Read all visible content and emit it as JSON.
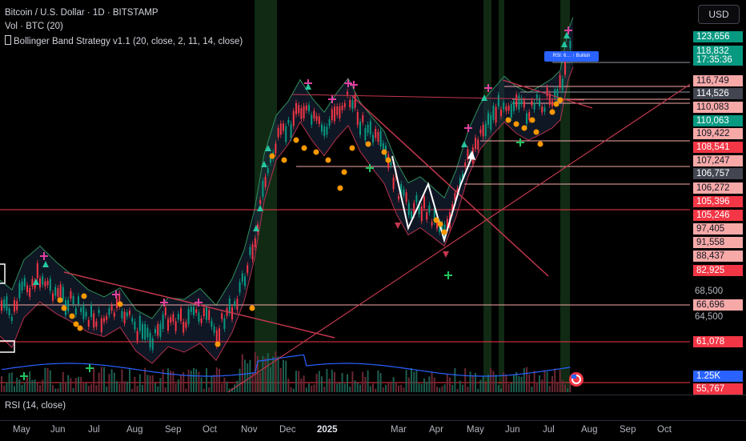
{
  "legend": {
    "symbol": "Bitcoin / U.S. Dollar · 1D · BITSTAMP",
    "volume": "Vol · BTC (20)",
    "strategy": "Bollinger Band Strategy v1.1 (20, close, 2, 11, 14, close)"
  },
  "currency_button": "USD",
  "badge_text": "RSI: 6… ↑ Bullish",
  "price_labels": [
    {
      "text": "123,656",
      "bg": "#089981",
      "fg": "#ffffff"
    },
    {
      "text": "118,832",
      "bg": "#089981",
      "fg": "#ffffff"
    },
    {
      "text": "17:35:36",
      "bg": "#089981",
      "fg": "#ffffff"
    },
    {
      "text": "116,749",
      "bg": "#f7a9a8",
      "fg": "#131722"
    },
    {
      "text": "114,526",
      "bg": "#434651",
      "fg": "#ffffff"
    },
    {
      "text": "110,083",
      "bg": "#f7a9a8",
      "fg": "#131722"
    },
    {
      "text": "110,063",
      "bg": "#089981",
      "fg": "#ffffff"
    },
    {
      "text": "109,422",
      "bg": "#f7a9a8",
      "fg": "#131722"
    },
    {
      "text": "108,541",
      "bg": "#f23645",
      "fg": "#ffffff"
    },
    {
      "text": "107,247",
      "bg": "#f7a9a8",
      "fg": "#131722"
    },
    {
      "text": "106,757",
      "bg": "#434651",
      "fg": "#ffffff"
    },
    {
      "text": "106,272",
      "bg": "#f7a9a8",
      "fg": "#131722"
    },
    {
      "text": "105,396",
      "bg": "#f23645",
      "fg": "#ffffff"
    },
    {
      "text": "105,246",
      "bg": "#f23645",
      "fg": "#ffffff"
    },
    {
      "text": "97,405",
      "bg": "#f7a9a8",
      "fg": "#131722"
    },
    {
      "text": "91,558",
      "bg": "#f7a9a8",
      "fg": "#131722"
    },
    {
      "text": "88,437",
      "bg": "#f7a9a8",
      "fg": "#131722"
    },
    {
      "text": "82,925",
      "bg": "#f23645",
      "fg": "#ffffff"
    },
    {
      "text": "66,696",
      "bg": "#f7a9a8",
      "fg": "#131722"
    },
    {
      "text": "61,078",
      "bg": "#f23645",
      "fg": "#ffffff"
    },
    {
      "text": "1.25K",
      "bg": "#2962ff",
      "fg": "#ffffff"
    },
    {
      "text": "55,767",
      "bg": "#f23645",
      "fg": "#ffffff"
    }
  ],
  "price_scale": [
    "68,500",
    "64,500"
  ],
  "rsi_label": "RSI (14, close)",
  "x_axis": [
    {
      "label": "May"
    },
    {
      "label": "Jun"
    },
    {
      "label": "Jul"
    },
    {
      "label": "Aug"
    },
    {
      "label": "Sep"
    },
    {
      "label": "Oct"
    },
    {
      "label": "Nov"
    },
    {
      "label": "Dec"
    },
    {
      "label": "2025",
      "bold": true
    },
    {
      "label": "Mar"
    },
    {
      "label": "Apr"
    },
    {
      "label": "May"
    },
    {
      "label": "Jun"
    },
    {
      "label": "Jul"
    },
    {
      "label": "Aug"
    },
    {
      "label": "Sep"
    },
    {
      "label": "Oct"
    }
  ],
  "colors": {
    "background": "#000000",
    "bull": "#089981",
    "bear": "#f23645",
    "band": "#2f8f5a",
    "volume": "#2962ff",
    "signal_dot": "#ff9800"
  }
}
